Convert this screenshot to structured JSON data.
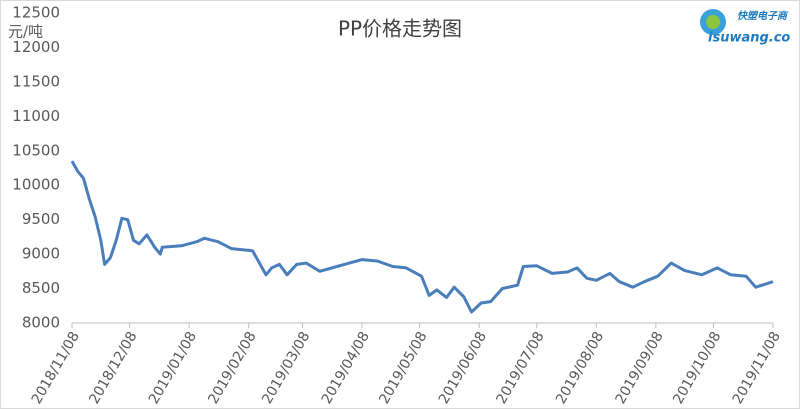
{
  "chart_data": {
    "type": "line",
    "title": "PP价格走势图",
    "y_label": "元/吨",
    "logo": {
      "name": "快塑电子商",
      "url": "isuwang.co"
    },
    "x": [
      "2018/11/08",
      "2018/11/11",
      "2018/11/14",
      "2018/11/17",
      "2018/11/20",
      "2018/11/23",
      "2018/11/25",
      "2018/11/28",
      "2018/12/01",
      "2018/12/04",
      "2018/12/07",
      "2018/12/10",
      "2018/12/13",
      "2018/12/17",
      "2018/12/21",
      "2018/12/24",
      "2018/12/25",
      "2019/01/04",
      "2019/01/12",
      "2019/01/16",
      "2019/01/23",
      "2019/01/30",
      "2019/02/10",
      "2019/02/13",
      "2019/02/17",
      "2019/02/20",
      "2019/02/24",
      "2019/02/28",
      "2019/03/05",
      "2019/03/10",
      "2019/03/17",
      "2019/03/26",
      "2019/03/31",
      "2019/04/08",
      "2019/04/16",
      "2019/04/24",
      "2019/05/01",
      "2019/05/09",
      "2019/05/13",
      "2019/05/17",
      "2019/05/22",
      "2019/05/26",
      "2019/05/31",
      "2019/06/04",
      "2019/06/09",
      "2019/06/14",
      "2019/06/20",
      "2019/06/28",
      "2019/07/01",
      "2019/07/08",
      "2019/07/16",
      "2019/07/24",
      "2019/07/29",
      "2019/08/03",
      "2019/08/08",
      "2019/08/15",
      "2019/08/20",
      "2019/08/27",
      "2019/09/02",
      "2019/09/09",
      "2019/09/16",
      "2019/09/23",
      "2019/10/02",
      "2019/10/10",
      "2019/10/17",
      "2019/10/25",
      "2019/10/30",
      "2019/11/08"
    ],
    "series": [
      {
        "color": "#4a7ebb",
        "values": [
          10350,
          10200,
          10100,
          9800,
          9550,
          9200,
          8850,
          8950,
          9200,
          9520,
          9500,
          9200,
          9150,
          9280,
          9100,
          9000,
          9100,
          9120,
          9180,
          9230,
          9180,
          9080,
          9050,
          8900,
          8700,
          8800,
          8850,
          8700,
          8850,
          8870,
          8750,
          8820,
          8860,
          8920,
          8900,
          8820,
          8800,
          8680,
          8400,
          8480,
          8370,
          8520,
          8380,
          8160,
          8290,
          8310,
          8500,
          8550,
          8820,
          8830,
          8720,
          8740,
          8800,
          8650,
          8620,
          8720,
          8600,
          8520,
          8600,
          8680,
          8870,
          8760,
          8700,
          8800,
          8700,
          8680,
          8520,
          8600
        ]
      }
    ],
    "xlim": [
      "2018/11/08",
      "2019/11/08"
    ],
    "xticks": [
      "2018/11/08",
      "2018/12/08",
      "2019/01/08",
      "2019/02/08",
      "2019/03/08",
      "2019/04/08",
      "2019/05/08",
      "2019/06/08",
      "2019/07/08",
      "2019/08/08",
      "2019/09/08",
      "2019/10/08",
      "2019/11/08"
    ],
    "ylim": [
      8000,
      12500
    ],
    "yticks": [
      8000,
      8500,
      9000,
      9500,
      10000,
      10500,
      11000,
      11500,
      12000,
      12500
    ]
  }
}
